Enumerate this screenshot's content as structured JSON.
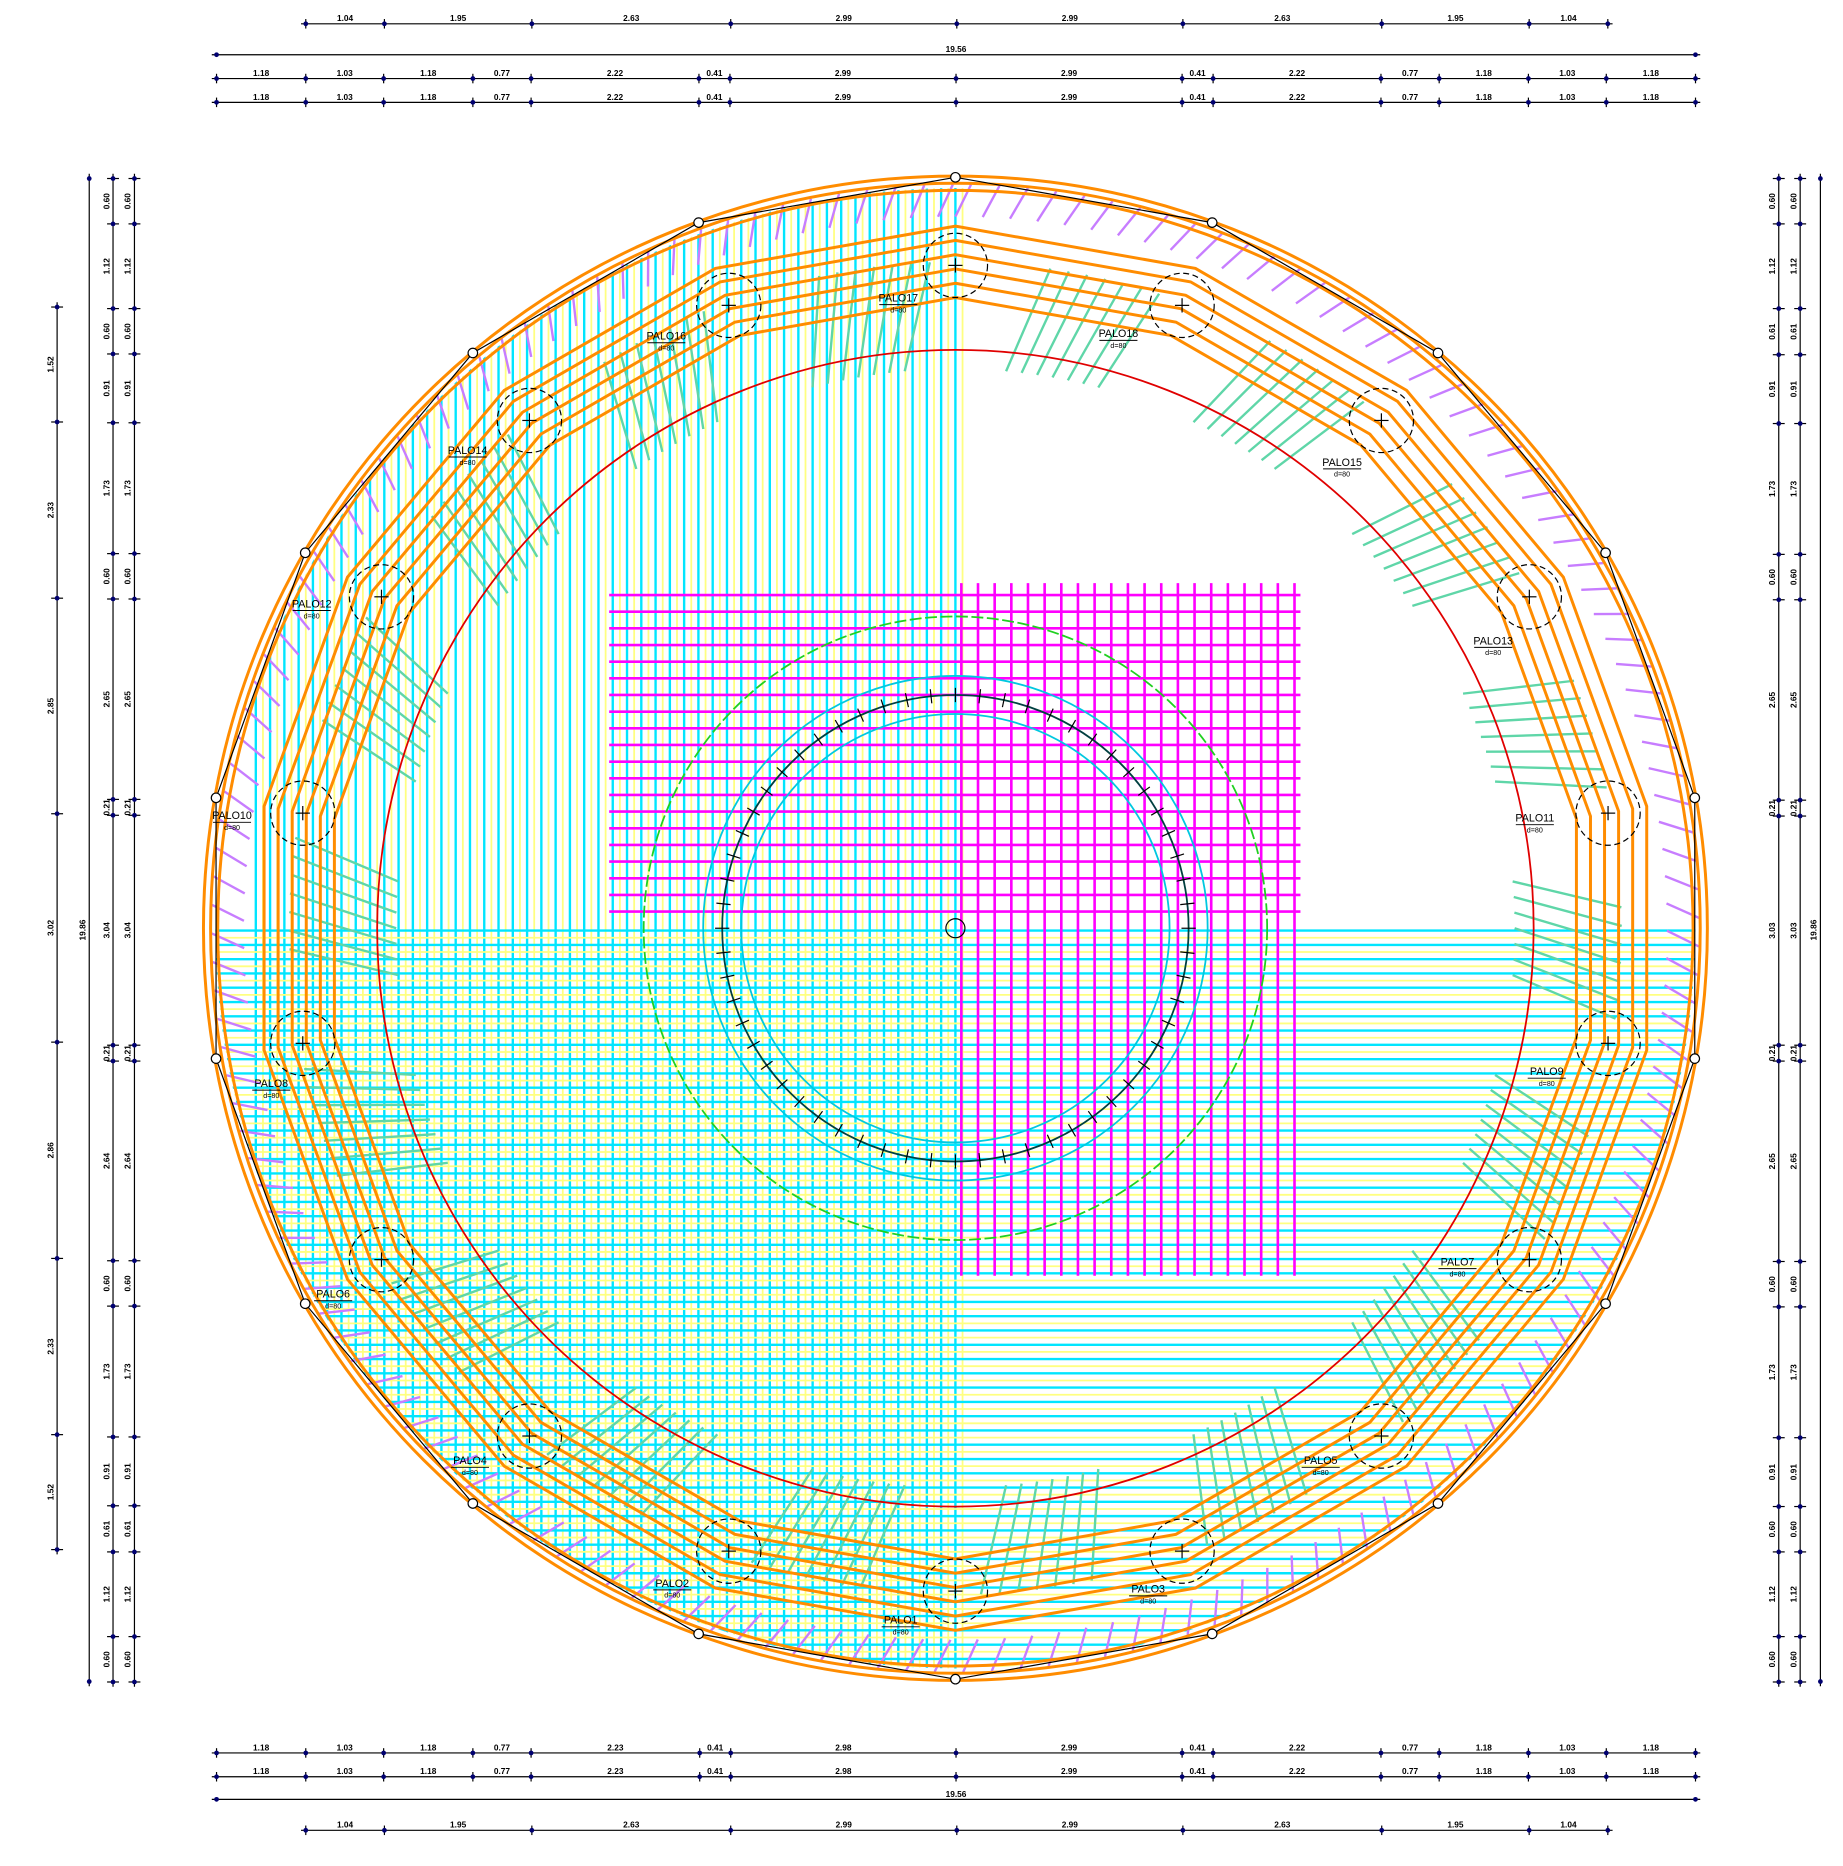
{
  "dimensions": {
    "top": {
      "outer": [
        "1.04",
        "1.95",
        "2.63",
        "2.99",
        "2.99",
        "2.63",
        "1.95",
        "1.04"
      ],
      "total": "19.56",
      "rows": [
        [
          "1.18",
          "1.03",
          "1.18",
          "0.77",
          "2.22",
          "0.41",
          "2.99",
          "2.99",
          "0.41",
          "2.22",
          "0.77",
          "1.18",
          "1.03",
          "1.18"
        ],
        [
          "1.18",
          "1.03",
          "1.18",
          "0.77",
          "2.22",
          "0.41",
          "2.99",
          "2.99",
          "0.41",
          "2.22",
          "0.77",
          "1.18",
          "1.03",
          "1.18"
        ]
      ]
    },
    "bottom": {
      "rows": [
        [
          "1.18",
          "1.03",
          "1.18",
          "0.77",
          "2.23",
          "0.41",
          "2.98",
          "2.99",
          "0.41",
          "2.22",
          "0.77",
          "1.18",
          "1.03",
          "1.18"
        ],
        [
          "1.18",
          "1.03",
          "1.18",
          "0.77",
          "2.23",
          "0.41",
          "2.98",
          "2.99",
          "0.41",
          "2.22",
          "0.77",
          "1.18",
          "1.03",
          "1.18"
        ]
      ],
      "total": "19.56",
      "outer": [
        "1.04",
        "1.95",
        "2.63",
        "2.99",
        "2.99",
        "2.63",
        "1.95",
        "1.04"
      ]
    },
    "left": {
      "outer": [
        "1.52",
        "2.33",
        "2.85",
        "3.02",
        "2.86",
        "2.33",
        "1.52"
      ],
      "total": "19.86",
      "inner": [
        [
          "0.60",
          "1.12",
          "0.60",
          "0.91",
          "1.73",
          "0.60",
          "2.65",
          "0.21",
          "3.04",
          "0.21",
          "2.64",
          "0.60",
          "1.73",
          "0.91",
          "0.61",
          "1.12",
          "0.60"
        ],
        [
          "0.60",
          "1.12",
          "0.60",
          "0.91",
          "1.73",
          "0.60",
          "2.65",
          "0.21",
          "3.04",
          "0.21",
          "2.64",
          "0.60",
          "1.73",
          "0.91",
          "0.61",
          "1.12",
          "0.60"
        ]
      ]
    },
    "right": {
      "inner": [
        [
          "0.60",
          "1.12",
          "0.61",
          "0.91",
          "1.73",
          "0.60",
          "2.65",
          "0.21",
          "3.03",
          "0.21",
          "2.65",
          "0.60",
          "1.73",
          "0.91",
          "0.60",
          "1.12",
          "0.60"
        ],
        [
          "0.60",
          "1.12",
          "0.61",
          "0.91",
          "1.73",
          "0.60",
          "2.65",
          "0.21",
          "3.03",
          "0.21",
          "2.65",
          "0.60",
          "1.73",
          "0.91",
          "0.60",
          "1.12",
          "0.60"
        ]
      ],
      "total": "19.86"
    }
  },
  "piles": [
    {
      "label": "PALO1",
      "note": "d=80"
    },
    {
      "label": "PALO2",
      "note": "d=80"
    },
    {
      "label": "PALO4",
      "note": "d=80"
    },
    {
      "label": "PALO6",
      "note": "d=80"
    },
    {
      "label": "PALO8",
      "note": "d=80"
    },
    {
      "label": "PALO10",
      "note": "d=80"
    },
    {
      "label": "PALO12",
      "note": "d=80"
    },
    {
      "label": "PALO14",
      "note": "d=80"
    },
    {
      "label": "PALO16",
      "note": "d=80"
    },
    {
      "label": "PALO17",
      "note": "d=80"
    },
    {
      "label": "PALO18",
      "note": "d=80"
    },
    {
      "label": "PALO15",
      "note": "d=80"
    },
    {
      "label": "PALO13",
      "note": "d=80"
    },
    {
      "label": "PALO11",
      "note": "d=80"
    },
    {
      "label": "PALO9",
      "note": "d=80"
    },
    {
      "label": "PALO7",
      "note": "d=80"
    },
    {
      "label": "PALO5",
      "note": "d=80"
    },
    {
      "label": "PALO3",
      "note": "d=80"
    }
  ]
}
